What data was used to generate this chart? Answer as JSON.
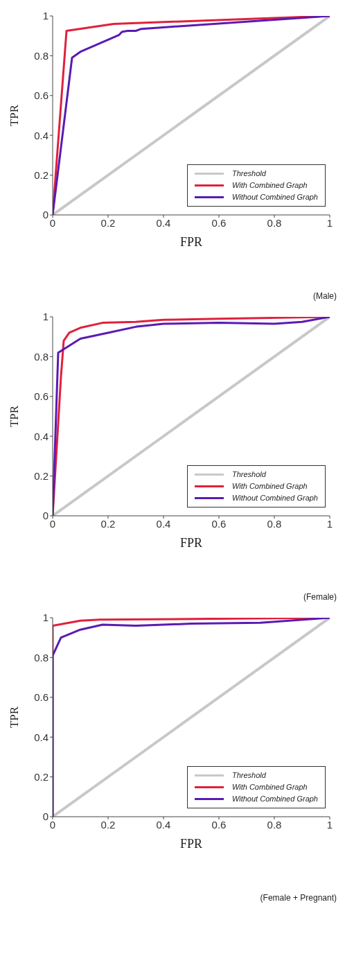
{
  "chart_data": [
    {
      "type": "line",
      "xlabel": "FPR",
      "ylabel": "TPR",
      "xlim": [
        0,
        1
      ],
      "ylim": [
        0,
        1
      ],
      "xticks": [
        0,
        0.2,
        0.4,
        0.6,
        0.8,
        1
      ],
      "yticks": [
        0,
        0.2,
        0.4,
        0.6,
        0.8,
        1
      ],
      "grid": false,
      "legend": "bottom right",
      "marker": "none",
      "annotations": [
        "(Male)"
      ],
      "series": [
        {
          "name": "Threshold",
          "color": "#c8c8c8",
          "x": [
            0,
            1
          ],
          "values": [
            0,
            1
          ]
        },
        {
          "name": "With Combined Graph",
          "color": "#e0203c",
          "x": [
            0,
            0.05,
            0.22,
            1
          ],
          "values": [
            0,
            0.925,
            0.96,
            1
          ]
        },
        {
          "name": "Without Combined Graph",
          "color": "#5a1ab4",
          "x": [
            0,
            0.07,
            0.1,
            0.24,
            0.25,
            0.27,
            0.3,
            0.32,
            1
          ],
          "values": [
            0,
            0.79,
            0.82,
            0.905,
            0.92,
            0.925,
            0.925,
            0.935,
            1
          ]
        }
      ]
    },
    {
      "type": "line",
      "xlabel": "FPR",
      "ylabel": "TPR",
      "xlim": [
        0,
        1
      ],
      "ylim": [
        0,
        1
      ],
      "xticks": [
        0,
        0.2,
        0.4,
        0.6,
        0.8,
        1
      ],
      "yticks": [
        0,
        0.2,
        0.4,
        0.6,
        0.8,
        1
      ],
      "grid": false,
      "legend": "bottom right",
      "marker": "none",
      "annotations": [
        "(Female)"
      ],
      "series": [
        {
          "name": "Threshold",
          "color": "#c8c8c8",
          "x": [
            0,
            1
          ],
          "values": [
            0,
            1
          ]
        },
        {
          "name": "With Combined Graph",
          "color": "#e0203c",
          "x": [
            0,
            0.03,
            0.04,
            0.06,
            0.1,
            0.18,
            0.3,
            0.4,
            0.6,
            1
          ],
          "values": [
            0,
            0.7,
            0.88,
            0.92,
            0.945,
            0.97,
            0.975,
            0.985,
            0.99,
            1
          ]
        },
        {
          "name": "Without Combined Graph",
          "color": "#5a1ab4",
          "x": [
            0,
            0.02,
            0.1,
            0.2,
            0.3,
            0.4,
            0.6,
            0.8,
            0.9,
            1
          ],
          "values": [
            0,
            0.82,
            0.89,
            0.92,
            0.95,
            0.965,
            0.97,
            0.965,
            0.975,
            1
          ]
        }
      ]
    },
    {
      "type": "line",
      "xlabel": "FPR",
      "ylabel": "TPR",
      "xlim": [
        0,
        1
      ],
      "ylim": [
        0,
        1
      ],
      "xticks": [
        0,
        0.2,
        0.4,
        0.6,
        0.8,
        1
      ],
      "yticks": [
        0,
        0.2,
        0.4,
        0.6,
        0.8,
        1
      ],
      "grid": false,
      "legend": "bottom right",
      "marker": "none",
      "annotations": [
        "(Female + Pregnant)"
      ],
      "series": [
        {
          "name": "Threshold",
          "color": "#c8c8c8",
          "x": [
            0,
            1
          ],
          "values": [
            0,
            1
          ]
        },
        {
          "name": "With Combined Graph",
          "color": "#e0203c",
          "x": [
            0,
            0,
            0.1,
            0.17,
            1
          ],
          "values": [
            0,
            0.96,
            0.985,
            0.99,
            1
          ]
        },
        {
          "name": "Without Combined Graph",
          "color": "#5a1ab4",
          "x": [
            0,
            0,
            0.03,
            0.1,
            0.18,
            0.3,
            0.5,
            0.75,
            1
          ],
          "values": [
            0,
            0.81,
            0.9,
            0.94,
            0.965,
            0.96,
            0.97,
            0.975,
            1
          ]
        }
      ]
    }
  ]
}
